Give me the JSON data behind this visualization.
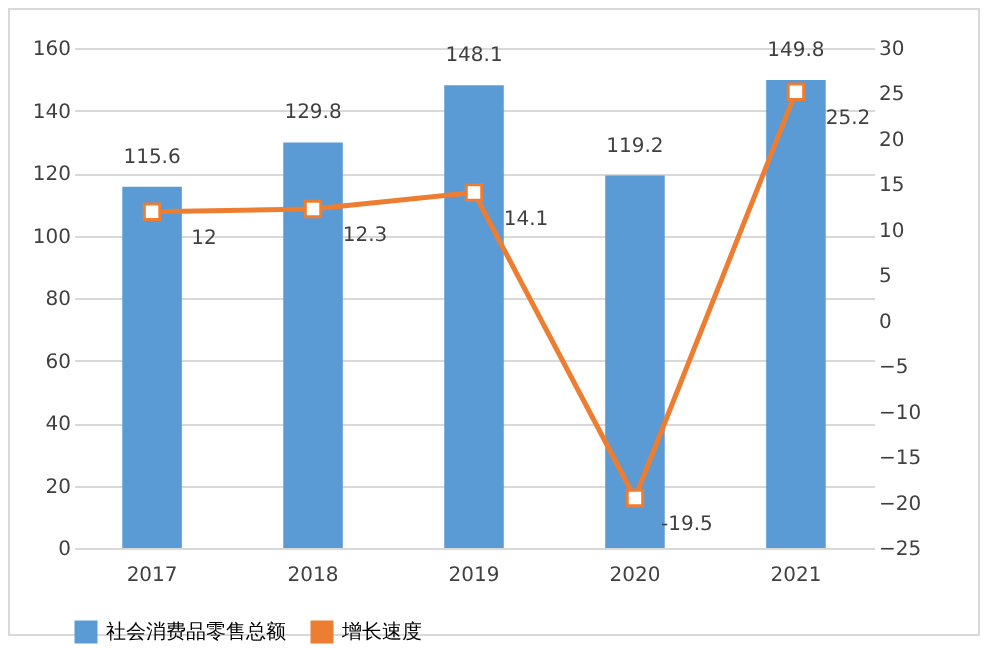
{
  "chart_data": {
    "type": "bar",
    "categories": [
      "2017",
      "2018",
      "2019",
      "2020",
      "2021"
    ],
    "series": [
      {
        "name": "社会消费品零售总额",
        "color": "#5b9bd5",
        "values": [
          115.6,
          129.8,
          148.1,
          119.2,
          149.8
        ]
      },
      {
        "name": "增长速度",
        "type": "line",
        "axis": "y2",
        "color": "#ed7d31",
        "values": [
          12,
          12.3,
          14.1,
          -19.5,
          25.2
        ]
      }
    ],
    "ylim": [
      0,
      160
    ],
    "yticks": [
      0,
      20,
      40,
      60,
      80,
      100,
      120,
      140,
      160
    ],
    "y2lim": [
      -25,
      30
    ],
    "y2ticks": [
      -25,
      -20,
      -15,
      -10,
      -5,
      0,
      5,
      10,
      15,
      20,
      25,
      30
    ],
    "grid": "y",
    "legend": "bottom",
    "marker": "square",
    "data_labels": true
  }
}
